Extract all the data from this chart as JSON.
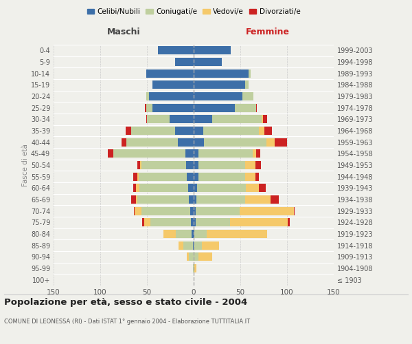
{
  "age_groups": [
    "100+",
    "95-99",
    "90-94",
    "85-89",
    "80-84",
    "75-79",
    "70-74",
    "65-69",
    "60-64",
    "55-59",
    "50-54",
    "45-49",
    "40-44",
    "35-39",
    "30-34",
    "25-29",
    "20-24",
    "15-19",
    "10-14",
    "5-9",
    "0-4"
  ],
  "birth_years": [
    "≤ 1903",
    "1904-1908",
    "1909-1913",
    "1914-1918",
    "1919-1923",
    "1924-1928",
    "1929-1933",
    "1934-1938",
    "1939-1943",
    "1944-1948",
    "1949-1953",
    "1954-1958",
    "1959-1963",
    "1964-1968",
    "1969-1973",
    "1974-1978",
    "1979-1983",
    "1984-1988",
    "1989-1993",
    "1994-1998",
    "1999-2003"
  ],
  "male": {
    "celibi": [
      0,
      0,
      0,
      1,
      2,
      3,
      4,
      5,
      6,
      7,
      8,
      9,
      17,
      20,
      26,
      44,
      48,
      44,
      51,
      20,
      38
    ],
    "coniugati": [
      0,
      1,
      5,
      10,
      17,
      43,
      52,
      55,
      52,
      52,
      48,
      77,
      55,
      47,
      24,
      7,
      3,
      0,
      0,
      0,
      0
    ],
    "vedovi": [
      0,
      0,
      2,
      5,
      13,
      7,
      7,
      2,
      4,
      1,
      1,
      0,
      0,
      0,
      0,
      0,
      0,
      0,
      0,
      0,
      0
    ],
    "divorziati": [
      0,
      0,
      0,
      0,
      0,
      2,
      1,
      5,
      3,
      5,
      3,
      6,
      5,
      6,
      1,
      1,
      0,
      0,
      0,
      0,
      0
    ]
  },
  "female": {
    "nubili": [
      0,
      0,
      0,
      0,
      1,
      2,
      2,
      3,
      4,
      5,
      5,
      5,
      11,
      10,
      20,
      44,
      52,
      55,
      59,
      30,
      40
    ],
    "coniugate": [
      0,
      1,
      5,
      9,
      13,
      37,
      47,
      52,
      52,
      50,
      50,
      58,
      67,
      60,
      53,
      23,
      12,
      4,
      2,
      0,
      0
    ],
    "vedove": [
      0,
      2,
      15,
      18,
      65,
      62,
      58,
      27,
      14,
      11,
      11,
      4,
      9,
      6,
      1,
      0,
      0,
      0,
      0,
      0,
      0
    ],
    "divorziate": [
      0,
      0,
      0,
      0,
      0,
      2,
      1,
      9,
      7,
      4,
      6,
      4,
      13,
      8,
      5,
      1,
      0,
      0,
      0,
      0,
      0
    ]
  },
  "colors": {
    "celibi_nubili": "#3d6fa8",
    "coniugati_e": "#bfcf9e",
    "vedovi_e": "#f5c96a",
    "divorziati_e": "#cc2222"
  },
  "xlim": 150,
  "title": "Popolazione per età, sesso e stato civile - 2004",
  "subtitle": "COMUNE DI LEONESSA (RI) - Dati ISTAT 1° gennaio 2004 - Elaborazione TUTTITALIA.IT",
  "ylabel_left": "Fasce di età",
  "header_left": "Maschi",
  "header_right": "Femmine",
  "legend_labels": [
    "Celibi/Nubili",
    "Coniugati/e",
    "Vedovi/e",
    "Divorziati/e"
  ],
  "bg_color": "#f0f0eb",
  "bar_height": 0.72
}
